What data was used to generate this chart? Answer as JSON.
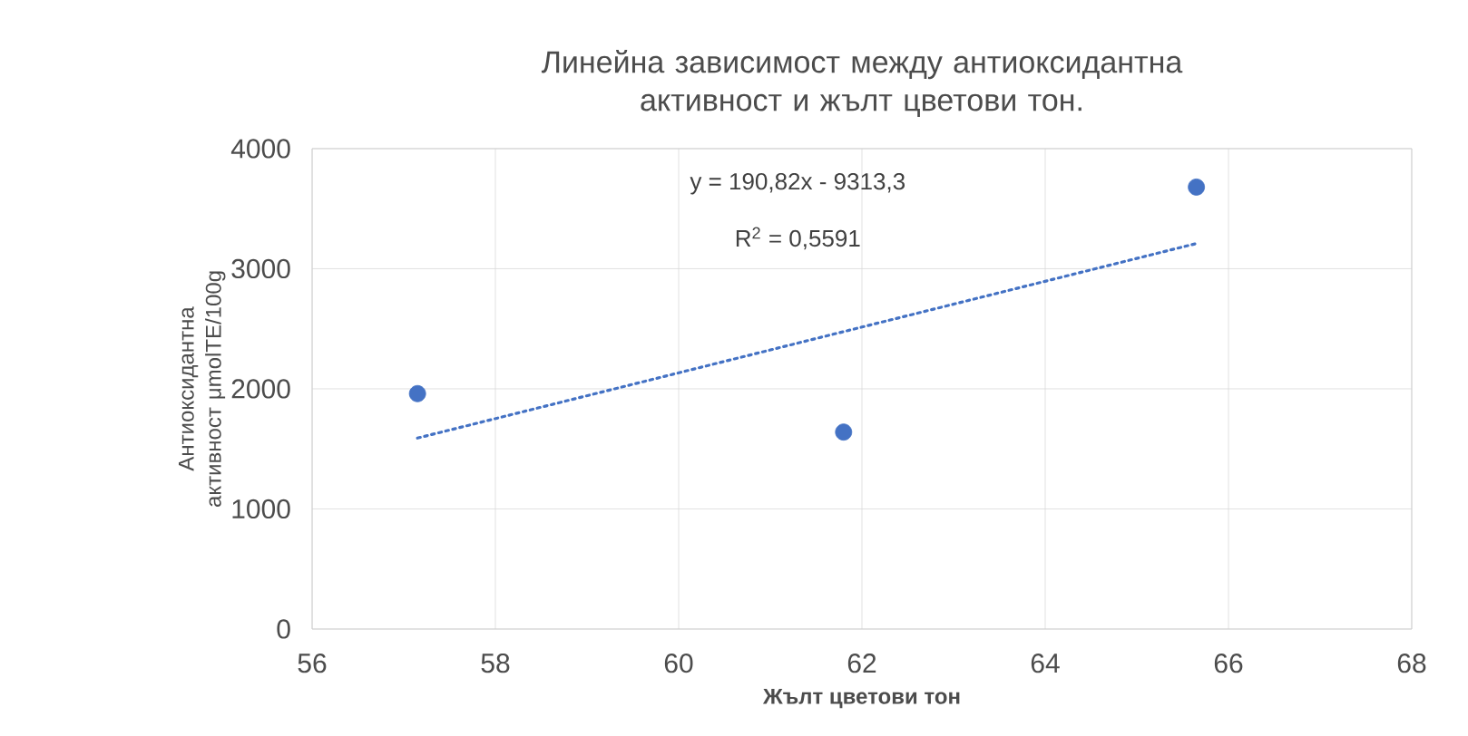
{
  "chart_data": {
    "type": "scatter",
    "title": "Линейна зависимост между антиоксидантна активност и жълт цветови тон.",
    "xlabel": "Жълт цветови тон",
    "ylabel": "Антиоксидантна активност μmolTE/100g",
    "annotations": [
      "y = 190,82x - 9313,3",
      "R$^{2}$ = 0,5591"
    ],
    "series": [
      {
        "color": "#4472c4",
        "marker": "circle",
        "x": [
          57.15,
          61.8,
          65.65
        ],
        "values": [
          1960,
          1640,
          3680
        ]
      },
      {
        "type": "line",
        "color": "#4472c4",
        "marker": "none",
        "line_style": "dotted",
        "x": [
          57.15,
          65.65
        ],
        "values": [
          1590,
          3210
        ]
      }
    ],
    "xlim": [
      56,
      68
    ],
    "xticks": [
      56,
      58,
      60,
      62,
      64,
      66,
      68
    ],
    "ylim": [
      0,
      4000
    ],
    "yticks": [
      0,
      1000,
      2000,
      3000,
      4000
    ],
    "grid": true
  }
}
